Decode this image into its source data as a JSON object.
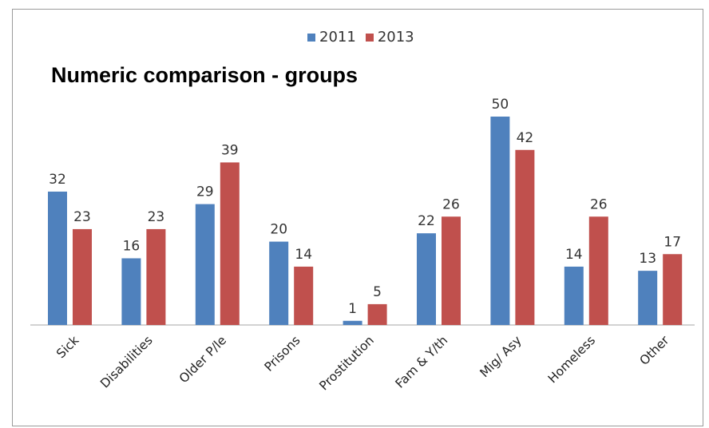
{
  "chart_data": {
    "type": "bar",
    "title": "Numeric comparison - groups",
    "categories": [
      "Sick",
      "Disabilities",
      "Older P/le",
      "Prisons",
      "Prostitution",
      "Fam & Y/th",
      "Mig/ Asy",
      "Homeless",
      "Other"
    ],
    "series": [
      {
        "name": "2011",
        "color": "#4f81bd",
        "values": [
          32,
          16,
          29,
          20,
          1,
          22,
          50,
          14,
          13
        ]
      },
      {
        "name": "2013",
        "color": "#c0504d",
        "values": [
          23,
          23,
          39,
          14,
          5,
          26,
          42,
          26,
          17
        ]
      }
    ],
    "ylim": [
      0,
      50
    ],
    "grid": false,
    "legend": "top-center",
    "data_labels": true
  }
}
